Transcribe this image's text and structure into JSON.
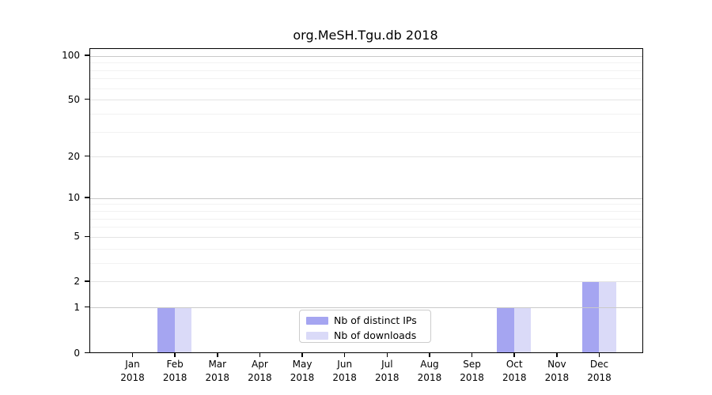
{
  "chart_data": {
    "type": "bar",
    "title": "org.MeSH.Tgu.db 2018",
    "categories": [
      {
        "month": "Jan",
        "year": "2018"
      },
      {
        "month": "Feb",
        "year": "2018"
      },
      {
        "month": "Mar",
        "year": "2018"
      },
      {
        "month": "Apr",
        "year": "2018"
      },
      {
        "month": "May",
        "year": "2018"
      },
      {
        "month": "Jun",
        "year": "2018"
      },
      {
        "month": "Jul",
        "year": "2018"
      },
      {
        "month": "Aug",
        "year": "2018"
      },
      {
        "month": "Sep",
        "year": "2018"
      },
      {
        "month": "Oct",
        "year": "2018"
      },
      {
        "month": "Nov",
        "year": "2018"
      },
      {
        "month": "Dec",
        "year": "2018"
      }
    ],
    "series": [
      {
        "name": "Nb of distinct IPs",
        "color": "#a5a5f1",
        "values": [
          0,
          1,
          0,
          0,
          0,
          0,
          0,
          0,
          0,
          1,
          0,
          2
        ]
      },
      {
        "name": "Nb of downloads",
        "color": "#dadaf8",
        "values": [
          0,
          1,
          0,
          0,
          0,
          0,
          0,
          0,
          0,
          1,
          0,
          2
        ]
      }
    ],
    "scale": "log1p",
    "ylim": [
      0,
      112
    ],
    "y_ticks": [
      0,
      1,
      2,
      5,
      10,
      20,
      50,
      100
    ],
    "grid": "both",
    "gridlines": {
      "strong_values": [
        1,
        10,
        100
      ],
      "medium_values": [
        2,
        5,
        20,
        50
      ],
      "minor_values": [
        3,
        4,
        6,
        7,
        8,
        9,
        30,
        40,
        60,
        70,
        80,
        90
      ],
      "strong_color": "#c9c9c9",
      "medium_color": "#e4e4e4",
      "minor_color": "#f2f2f2"
    },
    "legend_position": "bottom-center",
    "axis_color": "#000000"
  }
}
